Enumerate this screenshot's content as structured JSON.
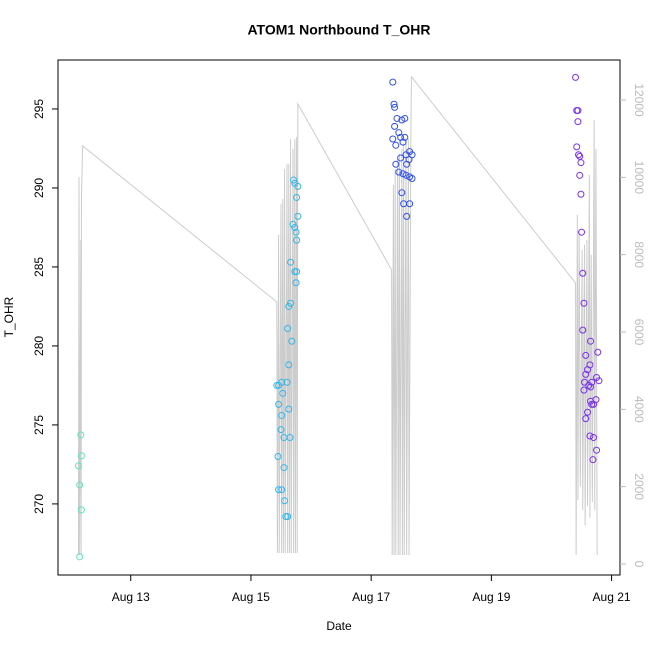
{
  "chart_data": {
    "type": "scatter",
    "title": "ATOM1 Northbound T_OHR",
    "x_label": "Date",
    "y_label": "T_OHR",
    "xlim": [
      11.79,
      21.14
    ],
    "xticks": [
      {
        "value": 13,
        "label": "Aug 13"
      },
      {
        "value": 15,
        "label": "Aug 15"
      },
      {
        "value": 17,
        "label": "Aug 17"
      },
      {
        "value": 19,
        "label": "Aug 19"
      },
      {
        "value": 21,
        "label": "Aug 21"
      }
    ],
    "ylim": [
      265.5,
      298.1
    ],
    "yticks": [
      270,
      275,
      280,
      285,
      290,
      295
    ],
    "y2lim": [
      -285,
      13035
    ],
    "y2ticks": [
      0,
      2000,
      4000,
      6000,
      8000,
      10000,
      12000
    ],
    "series": [
      {
        "type": "line",
        "axis": "y2",
        "color": "#cccccc",
        "x": [
          12.13,
          12.14,
          12.15,
          12.17,
          12.175,
          12.18,
          12.2,
          15.43,
          15.44,
          15.46,
          15.47,
          15.5,
          15.51,
          15.53,
          15.54,
          15.56,
          15.57,
          15.6,
          15.61,
          15.63,
          15.64,
          15.66,
          15.67,
          15.7,
          15.71,
          15.73,
          15.74,
          15.76,
          15.77,
          15.78,
          17.34,
          17.35,
          17.37,
          17.38,
          17.4,
          17.41,
          17.44,
          17.45,
          17.47,
          17.48,
          17.51,
          17.52,
          17.54,
          17.55,
          17.58,
          17.59,
          17.62,
          17.63,
          17.66,
          17.67,
          20.4,
          20.41,
          20.43,
          20.44,
          20.46,
          20.48,
          20.51,
          20.52,
          20.55,
          20.56,
          20.59,
          20.6,
          20.63,
          20.64,
          20.66,
          20.68,
          20.71,
          20.72,
          20.74,
          20.76
        ],
        "values": [
          233,
          10010,
          233,
          8380,
          233,
          9420,
          10814,
          6778,
          285,
          8511,
          285,
          9313,
          285,
          9443,
          285,
          10219,
          285,
          10348,
          285,
          10348,
          285,
          10995,
          285,
          10736,
          285,
          10995,
          285,
          11046,
          285,
          11900,
          7606,
          233,
          9805,
          233,
          10219,
          233,
          10478,
          233,
          10607,
          233,
          10736,
          233,
          10866,
          233,
          10995,
          233,
          10995,
          233,
          10866,
          12600,
          7270,
          233,
          9029,
          1656,
          8640,
          2000,
          8123,
          1400,
          8252,
          1000,
          8382,
          1500,
          10063,
          1200,
          8000,
          1600,
          11486,
          1400,
          10736,
          233
        ]
      },
      {
        "color": "#5fe3b8",
        "x": [
          12.17,
          12.18,
          12.13,
          12.15,
          12.18,
          12.15
        ],
        "values": [
          274.37,
          273.04,
          272.41,
          271.2,
          269.62,
          266.65
        ]
      },
      {
        "color": "#34b6ea",
        "x": [
          15.71,
          15.73,
          15.78,
          15.76,
          15.78,
          15.7,
          15.73,
          15.75,
          15.76,
          15.66,
          15.76,
          15.73,
          15.75,
          15.66,
          15.63,
          15.61,
          15.68,
          15.63,
          15.51,
          15.6,
          15.43,
          15.46,
          15.53,
          15.46,
          15.63,
          15.51,
          15.5,
          15.55,
          15.65,
          15.45,
          15.55,
          15.46,
          15.51,
          15.56,
          15.58,
          15.61
        ],
        "values": [
          290.5,
          290.3,
          290.1,
          289.4,
          288.2,
          287.7,
          287.5,
          287.2,
          286.7,
          285.3,
          284.7,
          284.7,
          284.0,
          282.7,
          282.5,
          281.1,
          280.3,
          278.8,
          277.7,
          277.7,
          277.5,
          277.5,
          277.0,
          276.3,
          276.0,
          275.6,
          274.7,
          274.2,
          274.2,
          273.0,
          272.3,
          270.9,
          270.9,
          270.2,
          269.2,
          269.2
        ]
      },
      {
        "color": "#3050ee",
        "x": [
          17.36,
          17.38,
          17.39,
          17.43,
          17.51,
          17.56,
          17.39,
          17.46,
          17.49,
          17.36,
          17.56,
          17.53,
          17.41,
          17.64,
          17.58,
          17.68,
          17.49,
          17.63,
          17.41,
          17.59,
          17.46,
          17.53,
          17.58,
          17.64,
          17.68,
          17.51,
          17.54,
          17.64,
          17.59
        ],
        "values": [
          296.7,
          295.3,
          295.1,
          294.4,
          294.3,
          294.4,
          293.9,
          293.5,
          293.2,
          293.1,
          293.2,
          292.9,
          292.7,
          292.3,
          292.1,
          292.1,
          291.9,
          291.8,
          291.5,
          291.5,
          291.0,
          290.9,
          290.8,
          290.7,
          290.6,
          289.7,
          289.0,
          289.0,
          288.2
        ]
      },
      {
        "color": "#7a30ee",
        "x": [
          20.4,
          20.44,
          20.42,
          20.44,
          20.42,
          20.45,
          20.47,
          20.49,
          20.47,
          20.49,
          20.5,
          20.52,
          20.54,
          20.52,
          20.65,
          20.77,
          20.57,
          20.64,
          20.6,
          20.57,
          20.75,
          20.79,
          20.55,
          20.67,
          20.62,
          20.65,
          20.54,
          20.65,
          20.74,
          20.67,
          20.7,
          20.6,
          20.57,
          20.64,
          20.7,
          20.75,
          20.69
        ],
        "values": [
          297.0,
          294.9,
          294.9,
          294.2,
          292.6,
          292.1,
          292.0,
          291.6,
          290.8,
          289.6,
          287.2,
          284.6,
          282.7,
          281.0,
          280.3,
          279.6,
          279.4,
          278.8,
          278.5,
          278.2,
          278.0,
          277.8,
          277.7,
          277.7,
          277.5,
          277.4,
          277.2,
          276.5,
          276.6,
          276.3,
          276.3,
          275.8,
          275.4,
          274.3,
          274.2,
          273.4,
          272.8
        ]
      }
    ]
  }
}
